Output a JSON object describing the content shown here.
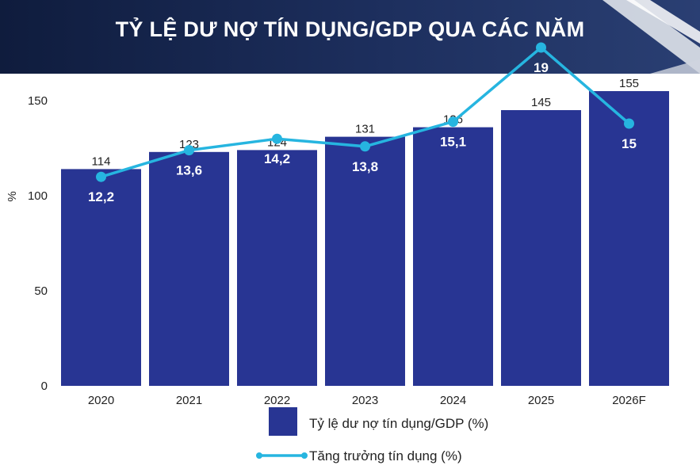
{
  "chart_data": {
    "type": "bar",
    "title": "TỶ LỆ DƯ NỢ TÍN DỤNG/GDP QUA CÁC NĂM",
    "ylabel": "%",
    "ylim": [
      0,
      155
    ],
    "yticks": [
      "0",
      "50",
      "100",
      "150"
    ],
    "categories": [
      "2020",
      "2021",
      "2022",
      "2023",
      "2024",
      "2025",
      "2026F"
    ],
    "series": [
      {
        "name": "Tỷ lệ dư nợ tín dụng/GDP (%)",
        "type": "bar",
        "color": "#283593",
        "values": [
          114,
          123,
          124,
          131,
          136,
          145,
          155
        ],
        "labels": [
          "114",
          "123",
          "124",
          "131",
          "136",
          "145",
          "155"
        ]
      },
      {
        "name": "Tăng trưởng tín dụng (%)",
        "type": "line",
        "color": "#26b5e0",
        "values": [
          12.2,
          13.6,
          14.2,
          13.8,
          15.1,
          19,
          15
        ],
        "labels": [
          "12,2",
          "13,6",
          "14,2",
          "13,8",
          "15,1",
          "19",
          "15"
        ]
      }
    ],
    "legend_position": "bottom"
  }
}
